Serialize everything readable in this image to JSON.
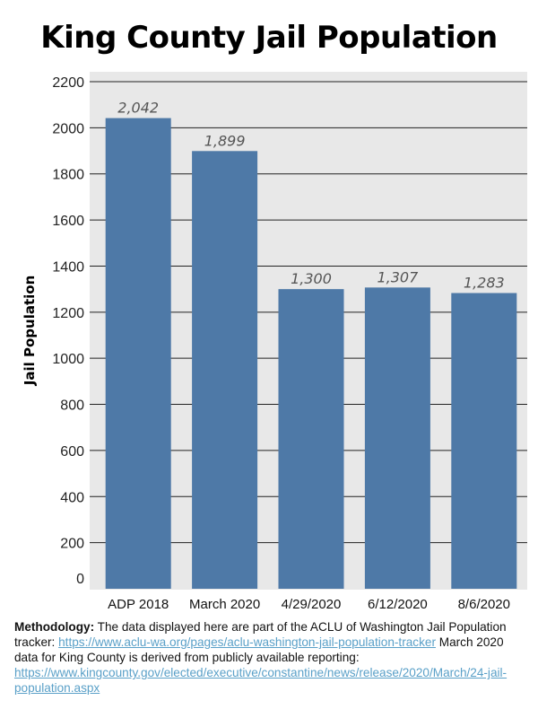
{
  "title": "King County Jail Population",
  "chart_data": {
    "type": "bar",
    "title": "King County Jail Population",
    "xlabel": "",
    "ylabel": "Jail Population",
    "categories": [
      "ADP 2018",
      "March 2020",
      "4/29/2020",
      "6/12/2020",
      "8/6/2020"
    ],
    "values": [
      2042,
      1899,
      1300,
      1307,
      1283
    ],
    "data_labels": [
      "2,042",
      "1,899",
      "1,300",
      "1,307",
      "1,283"
    ],
    "yticks": [
      0,
      200,
      400,
      600,
      800,
      1000,
      1200,
      1400,
      1600,
      1800,
      2000,
      2200
    ],
    "ylim": [
      0,
      2200
    ],
    "grid": true,
    "bar_color": "#4e79a7",
    "background_color": "#e8e8e8"
  },
  "methodology": {
    "heading": "Methodology:",
    "text1": " The data displayed here are part of the ACLU of Washington Jail Population tracker: ",
    "link1": "https://www.aclu-wa.org/pages/aclu-washington-jail-population-tracker",
    "text2": " March 2020 data for King County is derived from publicly available reporting: ",
    "link2": "https://www.kingcounty.gov/elected/executive/constantine/news/release/2020/March/24-jail-population.aspx"
  }
}
